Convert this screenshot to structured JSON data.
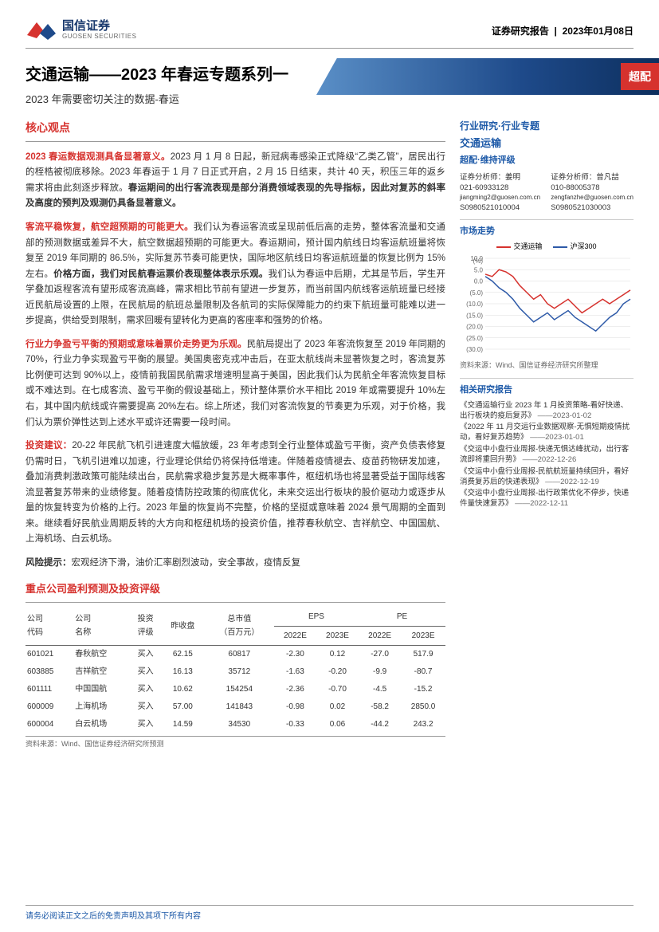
{
  "header": {
    "logo_cn": "国信证券",
    "logo_en": "GUOSEN SECURITIES",
    "report_type": "证券研究报告",
    "date": "2023年01月08日"
  },
  "title": {
    "main": "交通运输——2023 年春运专题系列一",
    "sub": "2023 年需要密切关注的数据-春运",
    "badge": "超配"
  },
  "left": {
    "section_head": "核心观点",
    "paras": [
      {
        "lead": "2023 春运数据观测具备显著意义。",
        "body": "2023 月 1 月 8 日起，新冠病毒感染正式降级“乙类乙管”，居民出行的桎梏被彻底移除。2023 年春运于 1 月 7 日正式开启，2 月 15 日结束，共计 40 天，积压三年的返乡需求将由此刻逐步释放。",
        "bold_tail": "春运期间的出行客流表现是部分消费领域表现的先导指标，因此对复苏的斜率及高度的预判及观测仍具备显著意义。"
      },
      {
        "lead": "客流平稳恢复，航空超预期的可能更大。",
        "body": "我们认为春运客流或呈现前低后高的走势，整体客流量和交通部的预测数据或差异不大，航空数据超预期的可能更大。春运期间，预计国内航线日均客运航班量将恢复至 2019 年同期的 86.5%，实际复苏节奏可能更快，国际地区航线日均客运航班量的恢复比例为 15%左右。",
        "bold_mid": "价格方面，我们对民航春运票价表现整体表示乐观。",
        "body2": "我们认为春运中后期，尤其是节后，学生开学叠加返程客流有望形成客流高峰，需求相比节前有望进一步复苏，而当前国内航线客运航班量已经接近民航局设置的上限，在民航局的航班总量限制及各航司的实际保障能力的约束下航班量可能难以进一步提高，供给受到限制，需求回暖有望转化为更高的客座率和强势的价格。"
      },
      {
        "lead": "行业力争盈亏平衡的预期或意味着票价走势更为乐观。",
        "body": "民航局提出了 2023 年客流恢复至 2019 年同期的 70%，行业力争实现盈亏平衡的展望。美国奥密克戎冲击后，在亚太航线尚未显著恢复之时，客流复苏比例便可达到 90%以上，疫情前我国民航需求增速明显高于美国，因此我们认为民航全年客流恢复目标或不难达到。在七成客流、盈亏平衡的假设基础上，预计整体票价水平相比 2019 年或需要提升 10%左右，其中国内航线或许需要提高 20%左右。综上所述，我们对客流恢复的节奏更为乐观，对于价格，我们认为票价弹性达到上述水平或许还需要一段时间。"
      },
      {
        "lead": "投资建议：",
        "body": "20-22 年民航飞机引进速度大幅放缓，23 年考虑到全行业整体或盈亏平衡，资产负债表修复仍需时日，飞机引进难以加速，行业理论供给仍将保持低增速。伴随着疫情褪去、疫苗药物研发加速，叠加消费刺激政策可能陆续出台，民航需求稳步复苏是大概率事件，枢纽机场也将显著受益于国际线客流显著复苏带来的业绩修复。随着疫情防控政策的彻底优化，未来交运出行板块的股价驱动力或逐步从量的恢复转变为价格的上行。2023 年量的恢复尚不完整，价格的坚挺或意味着 2024 景气周期的全面到来。继续看好民航业周期反转的大方向和枢纽机场的投资价值，推荐春秋航空、吉祥航空、中国国航、上海机场、白云机场。"
      }
    ],
    "risk_label": "风险提示：",
    "risk_text": "宏观经济下滑，油价汇率剧烈波动，安全事故，疫情反复",
    "table_head": "重点公司盈利预测及投资评级",
    "table": {
      "cols_top": [
        "公司",
        "公司",
        "投资",
        "昨收盘",
        "总市值",
        "EPS",
        "PE"
      ],
      "cols_sub": [
        "代码",
        "名称",
        "评级",
        "",
        "（百万元）",
        "2022E",
        "2023E",
        "2022E",
        "2023E"
      ],
      "rows": [
        [
          "601021",
          "春秋航空",
          "买入",
          "62.15",
          "60817",
          "-2.30",
          "0.12",
          "-27.0",
          "517.9"
        ],
        [
          "603885",
          "吉祥航空",
          "买入",
          "16.13",
          "35712",
          "-1.63",
          "-0.20",
          "-9.9",
          "-80.7"
        ],
        [
          "601111",
          "中国国航",
          "买入",
          "10.62",
          "154254",
          "-2.36",
          "-0.70",
          "-4.5",
          "-15.2"
        ],
        [
          "600009",
          "上海机场",
          "买入",
          "57.00",
          "141843",
          "-0.98",
          "0.02",
          "-58.2",
          "2850.0"
        ],
        [
          "600004",
          "白云机场",
          "买入",
          "14.59",
          "34530",
          "-0.33",
          "0.06",
          "-44.2",
          "243.2"
        ]
      ],
      "source": "资料来源：Wind、国信证券经济研究所预测"
    }
  },
  "right": {
    "cat1": "行业研究·行业专题",
    "cat2": "交通运输",
    "rating": "超配·维持评级",
    "analysts": [
      {
        "role": "证券分析师：",
        "name": "姜明",
        "phone": "021-60933128",
        "email": "jiangming2@guosen.com.cn",
        "cert": "S0980521010004"
      },
      {
        "role": "证券分析师：",
        "name": "曾凡喆",
        "phone": "010-88005378",
        "email": "zengfanzhe@guosen.com.cn",
        "cert": "S0980521030003"
      }
    ],
    "chart": {
      "title": "市场走势",
      "legend": [
        {
          "label": "交通运输",
          "color": "#d6322e"
        },
        {
          "label": "沪深300",
          "color": "#2e5aa8"
        }
      ],
      "y_ticks": [
        "(%)",
        "10.0",
        "5.0",
        "0.0",
        "(5.0)",
        "(10.0)",
        "(15.0)",
        "(20.0)",
        "(25.0)",
        "(30.0)"
      ],
      "background": "#ffffff",
      "grid_color": "#dddddd",
      "series_red": [
        3,
        2,
        5,
        4,
        2,
        -2,
        -5,
        -8,
        -6,
        -10,
        -12,
        -10,
        -8,
        -11,
        -14,
        -12,
        -10,
        -8,
        -10,
        -8,
        -6,
        -4
      ],
      "series_blue": [
        2,
        0,
        -3,
        -5,
        -8,
        -12,
        -15,
        -18,
        -16,
        -14,
        -17,
        -15,
        -13,
        -16,
        -18,
        -20,
        -22,
        -19,
        -16,
        -14,
        -10,
        -8
      ],
      "ylim": [
        -30,
        10
      ],
      "source": "资料来源：Wind、国信证券经济研究所整理"
    },
    "reports_head": "相关研究报告",
    "reports": [
      {
        "t": "《交通运输行业 2023 年 1 月投资策略-看好快递、出行板块的疫后复苏》",
        "d": "——2023-01-02"
      },
      {
        "t": "《2022 年 11 月交运行业数据观察-无惧短期疫情扰动，看好复苏趋势》",
        "d": "——2023-01-01"
      },
      {
        "t": "《交运中小盘行业周报-快递无惧达峰扰动，出行客流即将重回升势》",
        "d": "——2022-12-26"
      },
      {
        "t": "《交运中小盘行业周报-民航航班量持续回升，看好消费复苏后的快递表现》",
        "d": "——2022-12-19"
      },
      {
        "t": "《交运中小盘行业周报-出行政策优化不停步，快递件量快速复苏》",
        "d": "——2022-12-11"
      }
    ]
  },
  "footer": "请务必阅读正文之后的免责声明及其项下所有内容"
}
